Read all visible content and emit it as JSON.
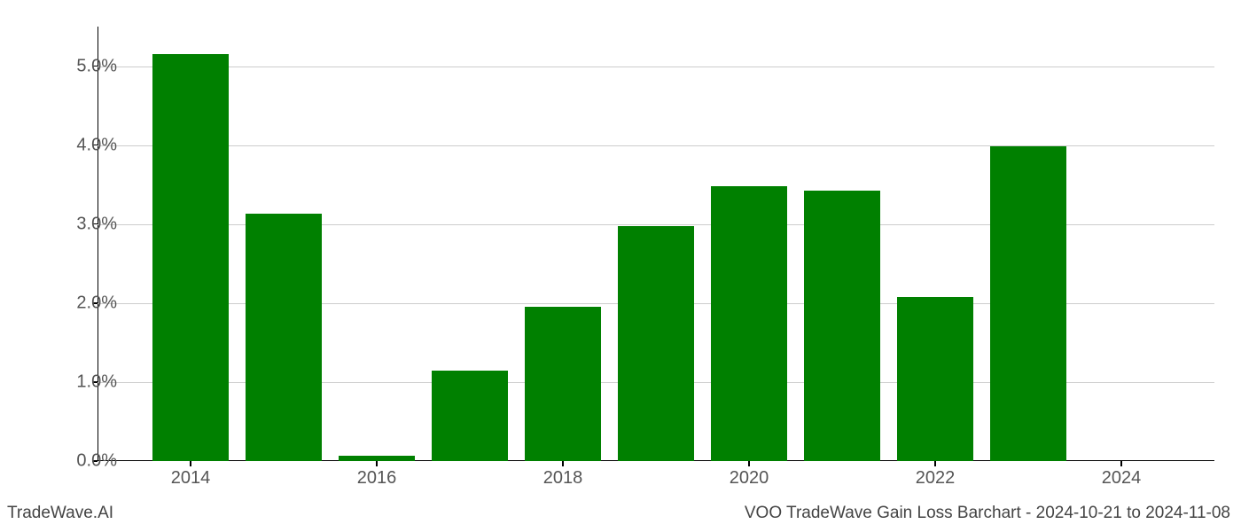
{
  "chart": {
    "type": "bar",
    "background_color": "#ffffff",
    "grid_color": "#cccccc",
    "axis_color": "#000000",
    "label_color": "#555555",
    "label_fontsize": 20,
    "bar_color": "#008000",
    "ylim": [
      0,
      5.5
    ],
    "y_ticks": [
      0.0,
      1.0,
      2.0,
      3.0,
      4.0,
      5.0
    ],
    "y_tick_labels": [
      "0.0%",
      "1.0%",
      "2.0%",
      "3.0%",
      "4.0%",
      "5.0%"
    ],
    "x_range": [
      2013,
      2025
    ],
    "x_ticks": [
      2014,
      2016,
      2018,
      2020,
      2022,
      2024
    ],
    "x_tick_labels": [
      "2014",
      "2016",
      "2018",
      "2020",
      "2022",
      "2024"
    ],
    "bar_width_years": 0.82,
    "bars": [
      {
        "year": 2014,
        "value": 5.15
      },
      {
        "year": 2015,
        "value": 3.13
      },
      {
        "year": 2016,
        "value": 0.07
      },
      {
        "year": 2017,
        "value": 1.15
      },
      {
        "year": 2018,
        "value": 1.95
      },
      {
        "year": 2019,
        "value": 2.97
      },
      {
        "year": 2020,
        "value": 3.48
      },
      {
        "year": 2021,
        "value": 3.42
      },
      {
        "year": 2022,
        "value": 2.08
      },
      {
        "year": 2023,
        "value": 3.99
      },
      {
        "year": 2024,
        "value": 0.0
      }
    ]
  },
  "footer": {
    "left": "TradeWave.AI",
    "right": "VOO TradeWave Gain Loss Barchart - 2024-10-21 to 2024-11-08"
  }
}
